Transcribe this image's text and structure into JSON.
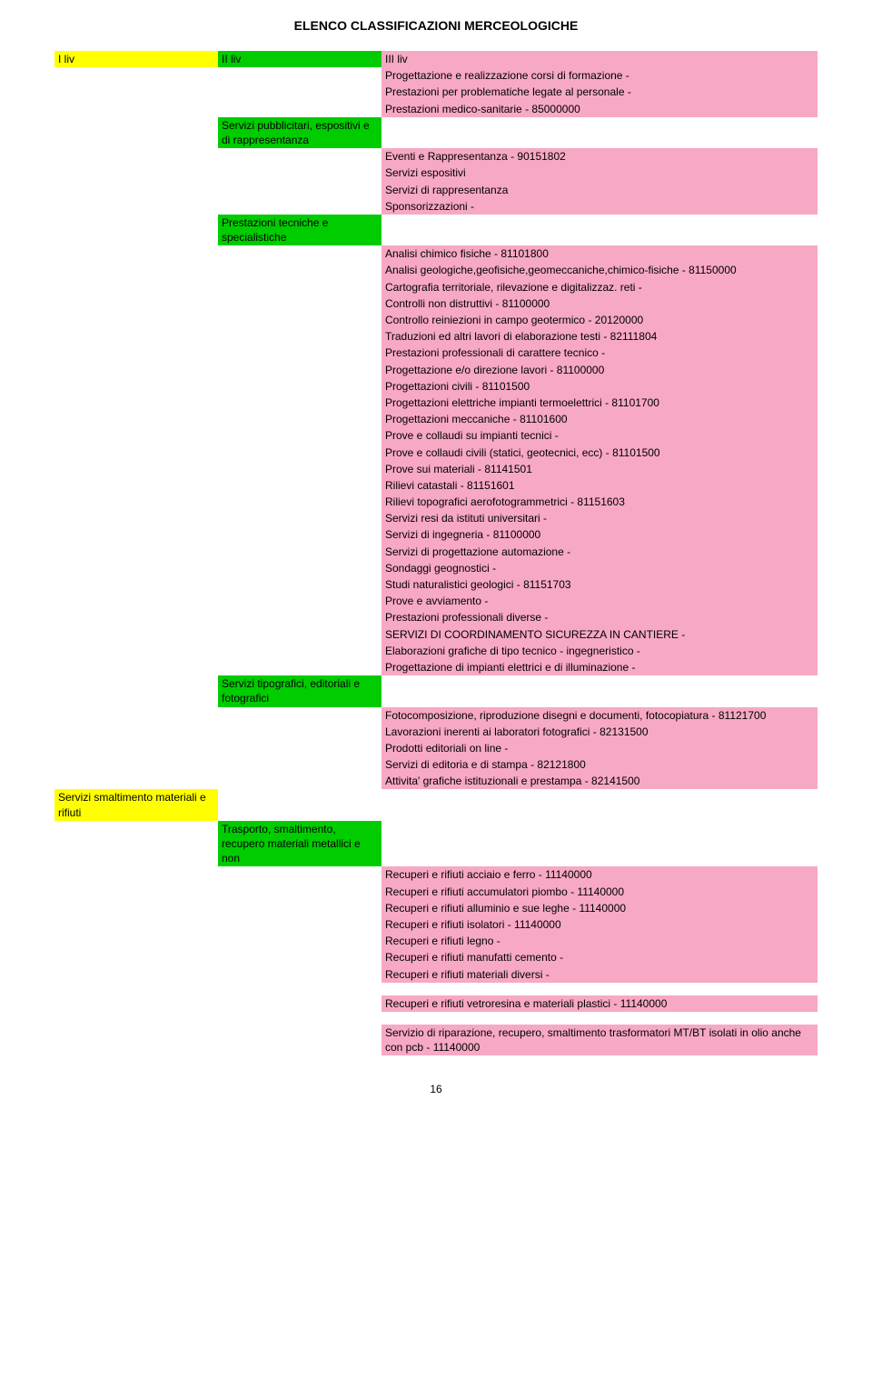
{
  "doc_title": "ELENCO CLASSIFICAZIONI MERCEOLOGICHE",
  "headers": {
    "col1": "I liv",
    "col2": "II liv",
    "col3": "III liv"
  },
  "col1_categories": {
    "servizi_smaltimento": "Servizi smaltimento materiali e rifiuti"
  },
  "col2_categories": {
    "servizi_pubblicitari": "Servizi pubblicitari, espositivi e di rappresentanza",
    "prestazioni_tecniche": "Prestazioni tecniche e specialistiche",
    "servizi_tipografici": "Servizi tipografici, editoriali e fotografici",
    "trasporto_smaltimento": "Trasporto, smaltimento, recupero materiali metallici e non"
  },
  "block_formazione": [
    "Progettazione e realizzazione corsi di formazione -",
    "Prestazioni per problematiche legate al personale -",
    "Prestazioni medico-sanitarie - 85000000"
  ],
  "block_eventi": [
    "Eventi e Rappresentanza - 90151802",
    "Servizi espositivi",
    "Servizi di rappresentanza",
    "Sponsorizzazioni -"
  ],
  "block_tecniche": [
    "Analisi chimico fisiche - 81101800",
    "Analisi geologiche,geofisiche,geomeccaniche,chimico-fisiche - 81150000",
    "Cartografia territoriale, rilevazione e digitalizzaz. reti -",
    "Controlli non distruttivi - 81100000",
    "Controllo reiniezioni in campo geotermico - 20120000",
    "Traduzioni ed altri lavori di elaborazione testi - 82111804",
    "Prestazioni professionali di carattere tecnico -",
    "Progettazione e/o direzione lavori - 81100000",
    "Progettazioni civili - 81101500",
    "Progettazioni elettriche impianti termoelettrici - 81101700",
    "Progettazioni meccaniche - 81101600",
    "Prove e collaudi su impianti tecnici -",
    "Prove e collaudi civili (statici, geotecnici, ecc) - 81101500",
    "Prove sui materiali - 81141501",
    "Rilievi catastali - 81151601",
    "Rilievi topografici aerofotogrammetrici - 81151603",
    "Servizi resi da istituti universitari -",
    "Servizi di ingegneria - 81100000",
    "Servizi di progettazione automazione -",
    "Sondaggi geognostici -",
    "Studi naturalistici geologici - 81151703",
    "Prove e avviamento -",
    "Prestazioni professionali diverse -",
    "SERVIZI DI COORDINAMENTO SICUREZZA IN CANTIERE -",
    "Elaborazioni grafiche di tipo tecnico - ingegneristico -",
    "Progettazione di impianti elettrici e di illuminazione -"
  ],
  "block_tipografici": [
    "Fotocomposizione, riproduzione disegni e documenti, fotocopiatura - 81121700",
    "Lavorazioni inerenti ai laboratori fotografici - 82131500",
    "Prodotti editoriali on line -",
    "Servizi di editoria e di stampa - 82121800",
    "Attivita' grafiche istituzionali e prestampa - 82141500"
  ],
  "block_recuperi": [
    "Recuperi e rifiuti acciaio e ferro - 11140000",
    "Recuperi e rifiuti accumulatori piombo - 11140000",
    "Recuperi e rifiuti alluminio e sue leghe - 11140000",
    "Recuperi e rifiuti isolatori - 11140000",
    "Recuperi e rifiuti legno -",
    "Recuperi e rifiuti manufatti cemento -",
    "Recuperi e rifiuti materiali diversi -"
  ],
  "block_vetroresina": [
    "Recuperi e rifiuti vetroresina e materiali plastici - 11140000"
  ],
  "block_trasformatori": [
    "Servizio di riparazione, recupero, smaltimento trasformatori MT/BT isolati in olio anche con pcb - 11140000"
  ],
  "page_number": "16",
  "colors": {
    "yellow": "#ffff00",
    "green": "#00cc00",
    "pink": "#f7a8c4",
    "white": "#ffffff",
    "text": "#000000"
  }
}
